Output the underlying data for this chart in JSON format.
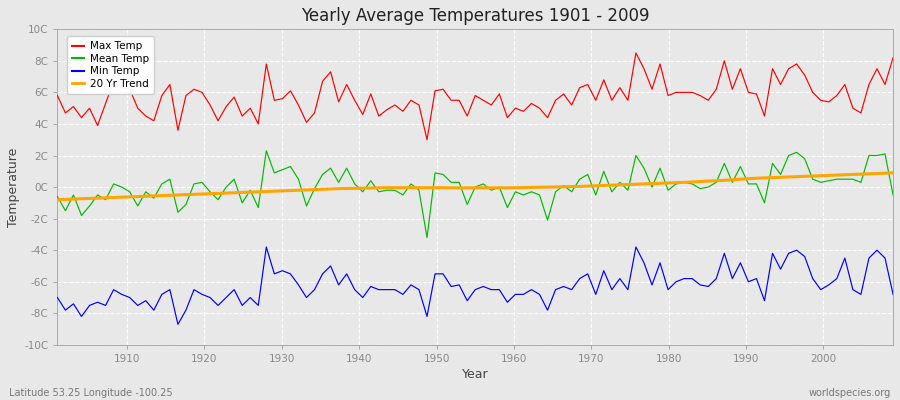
{
  "title": "Yearly Average Temperatures 1901 - 2009",
  "xlabel": "Year",
  "ylabel": "Temperature",
  "xlim": [
    1901,
    2009
  ],
  "ylim": [
    -10,
    10
  ],
  "yticks": [
    -10,
    -8,
    -6,
    -4,
    -2,
    0,
    2,
    4,
    6,
    8,
    10
  ],
  "ytick_labels": [
    "-10C",
    "-8C",
    "-6C",
    "-4C",
    "-2C",
    "0C",
    "2C",
    "4C",
    "6C",
    "8C",
    "10C"
  ],
  "plot_bg": "#e8e8e8",
  "fig_bg": "#e8e8e8",
  "grid_color": "#ffffff",
  "tick_color": "#888888",
  "footer_left": "Latitude 53.25 Longitude -100.25",
  "footer_right": "worldspecies.org",
  "legend_entries": [
    "Max Temp",
    "Mean Temp",
    "Min Temp",
    "20 Yr Trend"
  ],
  "legend_colors": [
    "#ff0000",
    "#00bb00",
    "#0000ff",
    "#ffa500"
  ],
  "max_temp": [
    5.8,
    4.7,
    5.1,
    4.4,
    5.0,
    3.9,
    5.3,
    6.7,
    6.3,
    6.2,
    5.0,
    4.5,
    4.2,
    5.8,
    6.5,
    3.6,
    5.8,
    6.2,
    6.0,
    5.2,
    4.2,
    5.1,
    5.7,
    4.5,
    5.0,
    4.0,
    7.8,
    5.5,
    5.6,
    6.1,
    5.2,
    4.1,
    4.7,
    6.7,
    7.3,
    5.4,
    6.5,
    5.5,
    4.6,
    5.9,
    4.5,
    4.9,
    5.2,
    4.8,
    5.5,
    5.2,
    3.0,
    6.1,
    6.2,
    5.5,
    5.5,
    4.5,
    5.8,
    5.5,
    5.2,
    5.9,
    4.4,
    5.0,
    4.8,
    5.3,
    5.0,
    4.4,
    5.5,
    5.9,
    5.2,
    6.3,
    6.5,
    5.5,
    6.8,
    5.5,
    6.3,
    5.5,
    8.5,
    7.5,
    6.2,
    7.8,
    5.8,
    6.0,
    6.0,
    6.0,
    5.8,
    5.5,
    6.2,
    8.0,
    6.2,
    7.5,
    6.0,
    5.9,
    4.5,
    7.5,
    6.5,
    7.5,
    7.8,
    7.1,
    6.0,
    5.5,
    5.4,
    5.8,
    6.5,
    5.0,
    4.7,
    6.5,
    7.5,
    6.5,
    8.2
  ],
  "mean_temp": [
    -0.6,
    -1.5,
    -0.5,
    -1.8,
    -1.2,
    -0.5,
    -0.8,
    0.2,
    0.0,
    -0.3,
    -1.2,
    -0.3,
    -0.7,
    0.2,
    0.5,
    -1.6,
    -1.1,
    0.2,
    0.3,
    -0.3,
    -0.8,
    0.0,
    0.5,
    -1.0,
    -0.2,
    -1.3,
    2.3,
    0.9,
    1.1,
    1.3,
    0.5,
    -1.2,
    -0.1,
    0.8,
    1.2,
    0.3,
    1.2,
    0.2,
    -0.3,
    0.4,
    -0.3,
    -0.2,
    -0.2,
    -0.5,
    0.2,
    -0.2,
    -3.2,
    0.9,
    0.8,
    0.3,
    0.3,
    -1.1,
    0.0,
    0.2,
    -0.2,
    0.0,
    -1.3,
    -0.3,
    -0.5,
    -0.3,
    -0.5,
    -2.1,
    -0.3,
    0.1,
    -0.3,
    0.5,
    0.8,
    -0.5,
    1.0,
    -0.3,
    0.3,
    -0.2,
    2.0,
    1.2,
    0.0,
    1.2,
    -0.2,
    0.2,
    0.3,
    0.2,
    -0.1,
    0.0,
    0.3,
    1.5,
    0.3,
    1.3,
    0.2,
    0.2,
    -1.0,
    1.5,
    0.8,
    2.0,
    2.2,
    1.8,
    0.5,
    0.3,
    0.4,
    0.5,
    0.5,
    0.5,
    0.3,
    2.0,
    2.0,
    2.1,
    -0.5
  ],
  "min_temp": [
    -7.0,
    -7.8,
    -7.4,
    -8.2,
    -7.5,
    -7.3,
    -7.5,
    -6.5,
    -6.8,
    -7.0,
    -7.5,
    -7.2,
    -7.8,
    -6.8,
    -6.5,
    -8.7,
    -7.8,
    -6.5,
    -6.8,
    -7.0,
    -7.5,
    -7.0,
    -6.5,
    -7.5,
    -7.0,
    -7.5,
    -3.8,
    -5.5,
    -5.3,
    -5.5,
    -6.2,
    -7.0,
    -6.5,
    -5.5,
    -5.0,
    -6.2,
    -5.5,
    -6.5,
    -7.0,
    -6.3,
    -6.5,
    -6.5,
    -6.5,
    -6.8,
    -6.2,
    -6.5,
    -8.2,
    -5.5,
    -5.5,
    -6.3,
    -6.2,
    -7.2,
    -6.5,
    -6.3,
    -6.5,
    -6.5,
    -7.3,
    -6.8,
    -6.8,
    -6.5,
    -6.8,
    -7.8,
    -6.5,
    -6.3,
    -6.5,
    -5.8,
    -5.5,
    -6.8,
    -5.3,
    -6.5,
    -5.8,
    -6.5,
    -3.8,
    -4.8,
    -6.2,
    -4.8,
    -6.5,
    -6.0,
    -5.8,
    -5.8,
    -6.2,
    -6.3,
    -5.8,
    -4.2,
    -5.8,
    -4.8,
    -6.0,
    -5.8,
    -7.2,
    -4.2,
    -5.2,
    -4.2,
    -4.0,
    -4.4,
    -5.8,
    -6.5,
    -6.2,
    -5.8,
    -4.5,
    -6.5,
    -6.8,
    -4.5,
    -4.0,
    -4.5,
    -6.8
  ],
  "trend": [
    -0.8,
    -0.78,
    -0.76,
    -0.74,
    -0.72,
    -0.7,
    -0.68,
    -0.66,
    -0.64,
    -0.62,
    -0.6,
    -0.58,
    -0.56,
    -0.54,
    -0.52,
    -0.5,
    -0.48,
    -0.46,
    -0.44,
    -0.42,
    -0.4,
    -0.38,
    -0.36,
    -0.34,
    -0.32,
    -0.3,
    -0.28,
    -0.26,
    -0.24,
    -0.22,
    -0.2,
    -0.18,
    -0.16,
    -0.14,
    -0.12,
    -0.1,
    -0.09,
    -0.08,
    -0.07,
    -0.06,
    -0.05,
    -0.04,
    -0.04,
    -0.04,
    -0.04,
    -0.04,
    -0.04,
    -0.04,
    -0.04,
    -0.05,
    -0.05,
    -0.05,
    -0.05,
    -0.05,
    -0.05,
    -0.05,
    -0.05,
    -0.04,
    -0.03,
    -0.02,
    -0.01,
    0.0,
    0.01,
    0.02,
    0.03,
    0.04,
    0.06,
    0.08,
    0.1,
    0.12,
    0.14,
    0.16,
    0.18,
    0.2,
    0.22,
    0.24,
    0.26,
    0.28,
    0.3,
    0.32,
    0.35,
    0.38,
    0.4,
    0.43,
    0.46,
    0.5,
    0.53,
    0.56,
    0.58,
    0.6,
    0.62,
    0.64,
    0.66,
    0.68,
    0.7,
    0.72,
    0.74,
    0.76,
    0.78,
    0.8,
    0.82,
    0.84,
    0.86,
    0.88,
    0.9
  ],
  "years_start": 1901,
  "years_end": 2009
}
